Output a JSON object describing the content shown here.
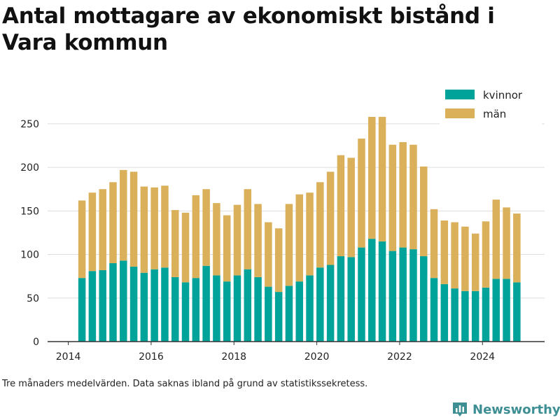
{
  "title": "Antal mottagare av ekonomiskt bistånd i Vara kommun",
  "footnote": "Tre månaders medelvärden. Data saknas ibland på grund av statistikssekretess.",
  "brand": {
    "name": "Newsworthy",
    "icon": "bar-chart-logo-icon",
    "color": "#3d8f94"
  },
  "colors": {
    "kvinnor": "#00a39a",
    "man": "#dbb05b",
    "grid": "#dddddd",
    "axis": "#333333"
  },
  "chart_data": {
    "type": "bar",
    "stacked": true,
    "x_ticks": [
      "2014",
      "2016",
      "2018",
      "2020",
      "2022",
      "2024"
    ],
    "y_ticks": [
      "0",
      "50",
      "100",
      "150",
      "200",
      "250"
    ],
    "ylim": [
      0,
      270
    ],
    "xlim": [
      2013.5,
      2025.5
    ],
    "grid": true,
    "legend_position": "top-right",
    "x": [
      2014.33,
      2014.58,
      2014.83,
      2015.08,
      2015.33,
      2015.58,
      2015.83,
      2016.08,
      2016.33,
      2016.58,
      2016.83,
      2017.08,
      2017.33,
      2017.58,
      2017.83,
      2018.08,
      2018.33,
      2018.58,
      2018.83,
      2019.08,
      2019.33,
      2019.58,
      2019.83,
      2020.08,
      2020.33,
      2020.58,
      2020.83,
      2021.08,
      2021.33,
      2021.58,
      2021.83,
      2022.08,
      2022.33,
      2022.58,
      2022.83,
      2023.08,
      2023.33,
      2023.58,
      2023.83,
      2024.08,
      2024.33,
      2024.58,
      2024.83
    ],
    "series": [
      {
        "name": "kvinnor",
        "values": [
          73,
          81,
          82,
          90,
          93,
          86,
          79,
          83,
          85,
          74,
          68,
          73,
          87,
          76,
          69,
          76,
          83,
          74,
          63,
          57,
          64,
          69,
          76,
          85,
          88,
          98,
          97,
          108,
          118,
          115,
          104,
          108,
          106,
          98,
          73,
          66,
          61,
          58,
          58,
          62,
          72,
          72,
          68
        ]
      },
      {
        "name": "män",
        "values": [
          89,
          90,
          93,
          93,
          104,
          109,
          99,
          94,
          94,
          77,
          80,
          95,
          88,
          83,
          76,
          81,
          92,
          84,
          74,
          73,
          94,
          100,
          95,
          98,
          107,
          116,
          114,
          125,
          140,
          143,
          122,
          121,
          120,
          103,
          79,
          73,
          76,
          74,
          66,
          76,
          91,
          82,
          79
        ]
      }
    ]
  }
}
